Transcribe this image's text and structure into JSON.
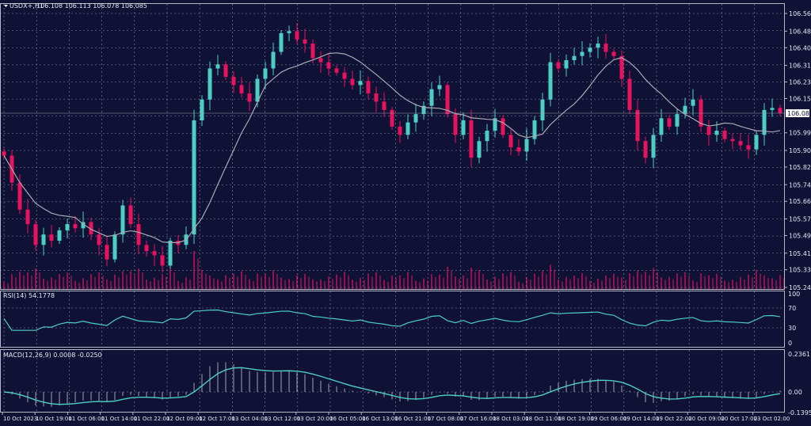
{
  "header": {
    "symbol": "USDX+,H1",
    "ohlc": "106.108 106.113 106.078 106.085"
  },
  "rsi_panel": {
    "label": "RSI(14) 54.1778",
    "levels": [
      "100",
      "70",
      "30",
      "0"
    ]
  },
  "macd_panel": {
    "label": "MACD(12,26,9) 0.0008 -0.0250",
    "levels": [
      "0.2361",
      "0.00",
      "-0.1395"
    ]
  },
  "colors": {
    "background": "#0f1235",
    "bull": "#4ecdc4",
    "bear": "#e8135e",
    "grid": "#8a8ea8",
    "ma": "#a9a9b4",
    "indicator": "#4ecdc4"
  },
  "chart_data": {
    "type": "candlestick",
    "title": "USDX+,H1",
    "price_axis_labels": [
      "106.565",
      "106.480",
      "106.400",
      "106.315",
      "106.235",
      "106.155",
      "105.990",
      "105.905",
      "105.825",
      "105.740",
      "105.660",
      "105.575",
      "105.495",
      "105.410",
      "105.330",
      "105.245"
    ],
    "current_price": "106.085",
    "ylim": [
      105.245,
      106.565
    ],
    "grid": true,
    "time_labels": [
      "10 Oct 2023",
      "10 Oct 19:00",
      "11 Oct 06:00",
      "11 Oct 14:00",
      "11 Oct 22:00",
      "12 Oct 09:00",
      "12 Oct 17:00",
      "13 Oct 04:00",
      "13 Oct 12:00",
      "13 Oct 20:00",
      "16 Oct 05:00",
      "16 Oct 13:00",
      "16 Oct 21:00",
      "17 Oct 08:00",
      "17 Oct 16:00",
      "18 Oct 03:00",
      "18 Oct 11:00",
      "18 Oct 19:00",
      "19 Oct 06:00",
      "19 Oct 14:00",
      "19 Oct 22:00",
      "20 Oct 09:00",
      "20 Oct 17:00",
      "23 Oct 02:00"
    ],
    "closes": [
      105.88,
      105.75,
      105.62,
      105.55,
      105.45,
      105.5,
      105.47,
      105.52,
      105.55,
      105.53,
      105.56,
      105.5,
      105.45,
      105.38,
      105.5,
      105.64,
      105.55,
      105.45,
      105.42,
      105.4,
      105.35,
      105.47,
      105.45,
      105.5,
      106.05,
      106.15,
      106.3,
      106.32,
      106.26,
      106.22,
      106.18,
      106.14,
      106.25,
      106.3,
      106.38,
      106.47,
      106.48,
      106.44,
      106.42,
      106.35,
      106.33,
      106.3,
      106.28,
      106.25,
      106.22,
      106.24,
      106.18,
      106.14,
      106.1,
      106.02,
      105.98,
      106.04,
      106.08,
      106.12,
      106.2,
      106.22,
      106.08,
      105.98,
      106.05,
      105.87,
      105.95,
      106.0,
      106.06,
      105.98,
      105.92,
      105.9,
      105.96,
      106.05,
      106.15,
      106.33,
      106.3,
      106.34,
      106.36,
      106.38,
      106.4,
      106.42,
      106.38,
      106.36,
      106.25,
      106.1,
      105.95,
      105.87,
      105.98,
      106.06,
      106.02,
      106.08,
      106.12,
      106.15,
      106.02,
      105.98,
      106.0,
      105.96,
      105.95,
      105.93,
      105.91,
      105.98,
      106.1,
      106.11,
      106.085
    ]
  }
}
